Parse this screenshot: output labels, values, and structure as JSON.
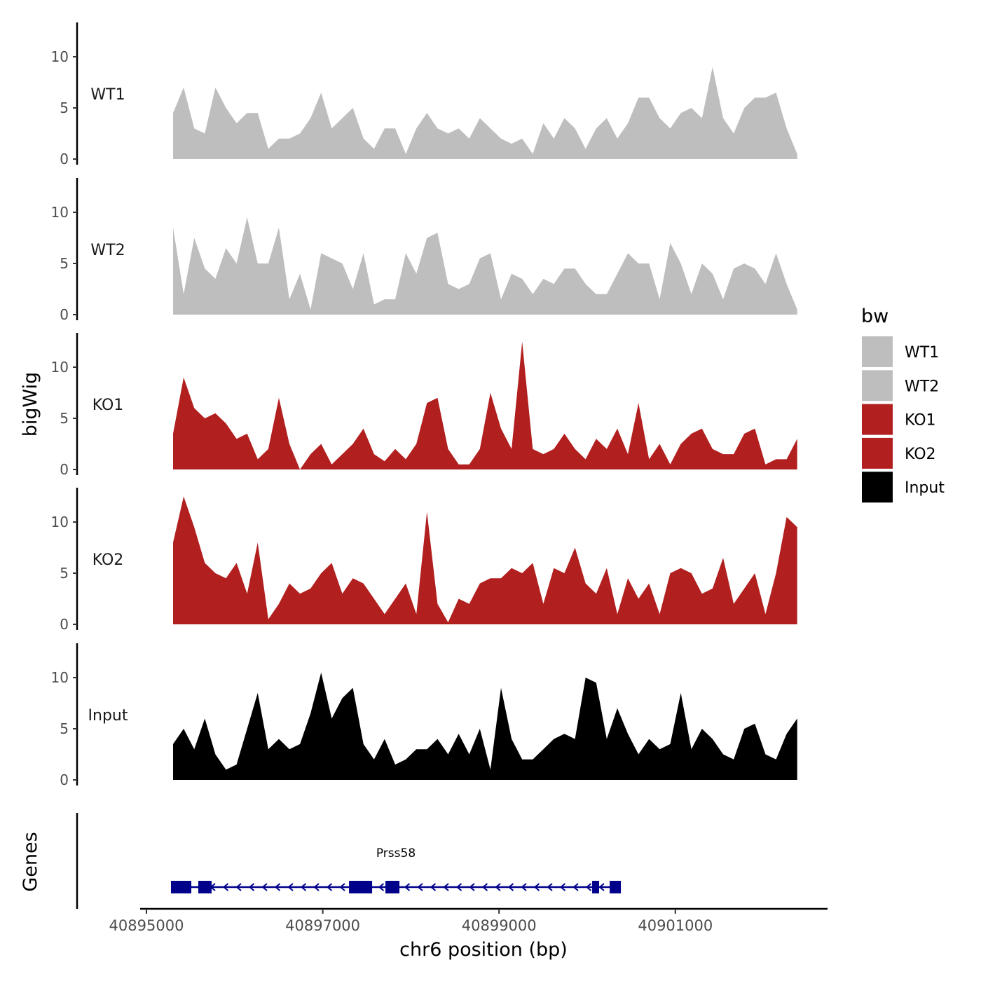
{
  "chart_data": {
    "type": "area",
    "xlabel": "chr6 position (bp)",
    "ylabel": "bigWig",
    "genes_label": "Genes",
    "xlim": [
      40894850,
      40902900
    ],
    "xticks": [
      40895000,
      40897000,
      40899000,
      40901000
    ],
    "ylim": [
      0,
      13.4
    ],
    "yticks": [
      0,
      5,
      10
    ],
    "x_start": 40895302,
    "x_step": 120,
    "legend": {
      "title": "bw",
      "position": "right",
      "entries": [
        {
          "label": "WT1",
          "color": "#bebebe"
        },
        {
          "label": "WT2",
          "color": "#bebebe"
        },
        {
          "label": "KO1",
          "color": "#b21f1f"
        },
        {
          "label": "KO2",
          "color": "#b21f1f"
        },
        {
          "label": "Input",
          "color": "#000000"
        }
      ]
    },
    "series": [
      {
        "name": "WT1",
        "color": "#bebebe",
        "values": [
          4.5,
          7,
          3,
          2.5,
          7,
          5,
          3.5,
          4.5,
          4.5,
          1,
          2,
          2,
          2.5,
          4,
          6.5,
          3,
          4,
          5,
          2,
          1,
          3,
          3,
          0.5,
          3,
          4.5,
          3,
          2.5,
          3,
          2,
          4,
          3,
          2,
          1.5,
          2,
          0.5,
          3.5,
          2,
          4,
          3,
          1,
          3,
          4,
          2,
          3.5,
          6,
          6,
          4,
          3,
          4.5,
          5,
          4,
          9,
          4,
          2.5,
          5,
          6,
          6,
          6.5,
          3,
          0.5
        ]
      },
      {
        "name": "WT2",
        "color": "#bebebe",
        "values": [
          8.5,
          2,
          7.5,
          4.5,
          3.5,
          6.5,
          5,
          9.5,
          5,
          5,
          8.5,
          1.5,
          4,
          0.5,
          6,
          5.5,
          5,
          2.5,
          6,
          1,
          1.5,
          1.5,
          6,
          4,
          7.5,
          8,
          3,
          2.5,
          3,
          5.5,
          6,
          1.5,
          4,
          3.5,
          2,
          3.5,
          3,
          4.5,
          4.5,
          3,
          2,
          2,
          4,
          6,
          5,
          5,
          1.5,
          7,
          5,
          2,
          5,
          4,
          1.5,
          4.5,
          5,
          4.5,
          3,
          6,
          3,
          0.5
        ]
      },
      {
        "name": "KO1",
        "color": "#b21f1f",
        "values": [
          3.5,
          9,
          6,
          5,
          5.5,
          4.5,
          3,
          3.5,
          1,
          2,
          7,
          2.5,
          0,
          1.5,
          2.5,
          0.5,
          1.5,
          2.5,
          4,
          1.5,
          0.8,
          2,
          1,
          2.5,
          6.5,
          7,
          2,
          0.5,
          0.5,
          2,
          7.5,
          4,
          2,
          12.5,
          2,
          1.5,
          2,
          3.5,
          2,
          1,
          3,
          2,
          4,
          1.5,
          6.5,
          1,
          2.5,
          0.5,
          2.5,
          3.5,
          4,
          2,
          1.5,
          1.5,
          3.5,
          4,
          0.5,
          1,
          1,
          3
        ]
      },
      {
        "name": "KO2",
        "color": "#b21f1f",
        "values": [
          8,
          12.5,
          9.5,
          6,
          5,
          4.5,
          6,
          3,
          8,
          0.5,
          2,
          4,
          3,
          3.5,
          5,
          6,
          3,
          4.5,
          4,
          2.5,
          1,
          2.5,
          4,
          1,
          11,
          2,
          0.2,
          2.5,
          2,
          4,
          4.5,
          4.5,
          5.5,
          5,
          6,
          2,
          5.5,
          5,
          7.5,
          4,
          3,
          5.5,
          1,
          4.5,
          2.5,
          4,
          1,
          5,
          5.5,
          5,
          3,
          3.5,
          6.5,
          2,
          3.5,
          5,
          1,
          5,
          10.5,
          9.5
        ]
      },
      {
        "name": "Input",
        "color": "#000000",
        "values": [
          3.5,
          5,
          3,
          6,
          2.5,
          1,
          1.5,
          5,
          8.5,
          3,
          4,
          3,
          3.5,
          6.5,
          10.5,
          6,
          8,
          9,
          3.5,
          2,
          4,
          1.5,
          2,
          3,
          3,
          4,
          2.5,
          4.5,
          2.5,
          5,
          1,
          9,
          4,
          2,
          2,
          3,
          4,
          4.5,
          4,
          10,
          9.5,
          4,
          7,
          4.5,
          2.5,
          4,
          3,
          3.5,
          8.5,
          3,
          5,
          4,
          2.5,
          2,
          5,
          5.5,
          2.5,
          2,
          4.5,
          6
        ]
      }
    ],
    "genes": [
      {
        "name": "Prss58",
        "strand": "-",
        "start": 40895278,
        "end": 40900382,
        "color": "#00008b",
        "exons": [
          [
            40895278,
            40895509
          ],
          [
            40895588,
            40895739
          ],
          [
            40897298,
            40897560
          ],
          [
            40897711,
            40897870
          ],
          [
            40900056,
            40900135
          ],
          [
            40900255,
            40900382
          ]
        ]
      }
    ]
  }
}
